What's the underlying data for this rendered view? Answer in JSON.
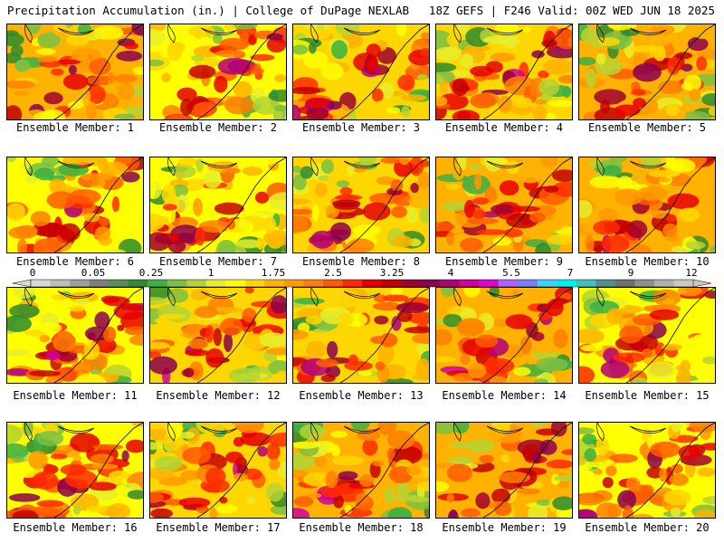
{
  "header": {
    "title": "Precipitation Accumulation (in.) | College of DuPage NEXLAB",
    "valid": "18Z GEFS | F246 Valid: 00Z WED JUN 18 2025"
  },
  "panels": [
    {
      "caption": "Ensemble Member: 1"
    },
    {
      "caption": "Ensemble Member: 2"
    },
    {
      "caption": "Ensemble Member: 3"
    },
    {
      "caption": "Ensemble Member: 4"
    },
    {
      "caption": "Ensemble Member: 5"
    },
    {
      "caption": "Ensemble Member: 6"
    },
    {
      "caption": "Ensemble Member: 7"
    },
    {
      "caption": "Ensemble Member: 8"
    },
    {
      "caption": "Ensemble Member: 9"
    },
    {
      "caption": "Ensemble Member: 10"
    },
    {
      "caption": "Ensemble Member: 11"
    },
    {
      "caption": "Ensemble Member: 12"
    },
    {
      "caption": "Ensemble Member: 13"
    },
    {
      "caption": "Ensemble Member: 14"
    },
    {
      "caption": "Ensemble Member: 15"
    },
    {
      "caption": "Ensemble Member: 16"
    },
    {
      "caption": "Ensemble Member: 17"
    },
    {
      "caption": "Ensemble Member: 18"
    },
    {
      "caption": "Ensemble Member: 19"
    },
    {
      "caption": "Ensemble Member: 20"
    }
  ],
  "colorbar": {
    "labels": [
      "0",
      "0.05",
      "0.25",
      "1",
      "1.75",
      "2.5",
      "3.25",
      "4",
      "5.5",
      "7",
      "9",
      "12"
    ],
    "colors": [
      "#d8d8d8",
      "#bdbdbd",
      "#9e9e9e",
      "#7f7f7f",
      "#5b8c5a",
      "#2e8b2e",
      "#3cb043",
      "#7bc043",
      "#b5d334",
      "#e8ee2c",
      "#ffff00",
      "#ffd700",
      "#ffb300",
      "#ff9900",
      "#ff7f00",
      "#ff5a00",
      "#ff2a00",
      "#e60000",
      "#c40000",
      "#a00030",
      "#8b0050",
      "#b0007a",
      "#d000a0",
      "#e000d8",
      "#b060ff",
      "#7080ff",
      "#40d0ff",
      "#00f0f0",
      "#40c0c0",
      "#509090",
      "#707070",
      "#909090",
      "#b0b0b0",
      "#c8c8c8"
    ]
  }
}
